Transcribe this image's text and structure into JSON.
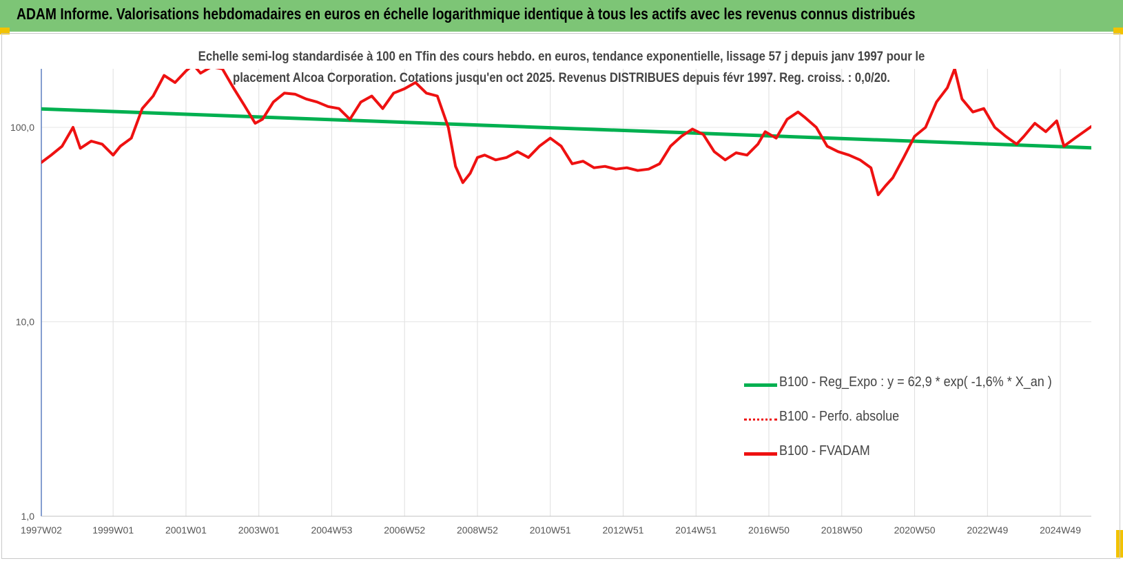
{
  "header": {
    "title": "ADAM Informe. Valorisations hebdomadaires en euros en échelle logarithmique identique à tous les actifs avec les revenus connus distribués"
  },
  "chart_data": {
    "type": "line",
    "title_lines": [
      "Echelle semi-log standardisée à 100 en Tfin des cours hebdo. en euros, tendance exponentielle, lissage 57 j depuis janv 1997 pour le",
      "placement Alcoa Corporation. Cotations jusqu'en oct 2025. Revenus DISTRIBUES depuis févr 1997. Reg. croiss. : 0,0/20."
    ],
    "y_scale": "log",
    "ylim": [
      1,
      200
    ],
    "yticks": [
      {
        "value": 1,
        "label": "1,0"
      },
      {
        "value": 10,
        "label": "10,0"
      },
      {
        "value": 100,
        "label": "100,0"
      }
    ],
    "xlim": [
      1997.03,
      2025.85
    ],
    "xticks": [
      {
        "value": 1997.03,
        "label": "1997W02"
      },
      {
        "value": 1999.0,
        "label": "1999W01"
      },
      {
        "value": 2001.0,
        "label": "2001W01"
      },
      {
        "value": 2003.0,
        "label": "2003W01"
      },
      {
        "value": 2005.0,
        "label": "2004W53"
      },
      {
        "value": 2007.0,
        "label": "2006W52"
      },
      {
        "value": 2009.0,
        "label": "2008W52"
      },
      {
        "value": 2011.0,
        "label": "2010W51"
      },
      {
        "value": 2013.0,
        "label": "2012W51"
      },
      {
        "value": 2015.0,
        "label": "2014W51"
      },
      {
        "value": 2017.0,
        "label": "2016W50"
      },
      {
        "value": 2019.0,
        "label": "2018W50"
      },
      {
        "value": 2021.0,
        "label": "2020W50"
      },
      {
        "value": 2023.0,
        "label": "2022W49"
      },
      {
        "value": 2025.0,
        "label": "2024W49"
      }
    ],
    "grid": "vertical",
    "legend_position": "lower-right",
    "colors": {
      "trend": "#00b050",
      "fvadam": "#ee1111",
      "perfo": "#ee1111"
    },
    "series": [
      {
        "name": "B100 - Reg_Expo : y = 62,9 * exp( -1,6% *  X_an )",
        "style": "solid-green",
        "x": [
          1997.03,
          2025.85
        ],
        "y": [
          124.5,
          78.5
        ]
      },
      {
        "name": "B100 - Perfo. absolue",
        "style": "dotted-red",
        "x": [],
        "y": []
      },
      {
        "name": "B100 - FVADAM",
        "style": "solid-red",
        "x": [
          1997.03,
          1997.3,
          1997.6,
          1997.9,
          1998.1,
          1998.4,
          1998.7,
          1999.0,
          1999.2,
          1999.5,
          1999.8,
          2000.1,
          2000.4,
          2000.7,
          2001.0,
          2001.2,
          2001.4,
          2001.7,
          2002.0,
          2002.3,
          2002.6,
          2002.9,
          2003.1,
          2003.4,
          2003.7,
          2004.0,
          2004.3,
          2004.6,
          2004.9,
          2005.2,
          2005.5,
          2005.8,
          2006.1,
          2006.4,
          2006.7,
          2007.0,
          2007.3,
          2007.6,
          2007.9,
          2008.2,
          2008.4,
          2008.6,
          2008.8,
          2009.0,
          2009.2,
          2009.5,
          2009.8,
          2010.1,
          2010.4,
          2010.7,
          2011.0,
          2011.3,
          2011.6,
          2011.9,
          2012.2,
          2012.5,
          2012.8,
          2013.1,
          2013.4,
          2013.7,
          2014.0,
          2014.3,
          2014.6,
          2014.9,
          2015.2,
          2015.5,
          2015.8,
          2016.1,
          2016.4,
          2016.7,
          2016.9,
          2017.2,
          2017.5,
          2017.8,
          2018.0,
          2018.3,
          2018.6,
          2018.9,
          2019.2,
          2019.5,
          2019.8,
          2020.0,
          2020.2,
          2020.4,
          2020.7,
          2021.0,
          2021.3,
          2021.6,
          2021.9,
          2022.1,
          2022.3,
          2022.6,
          2022.9,
          2023.2,
          2023.5,
          2023.8,
          2024.0,
          2024.3,
          2024.6,
          2024.9,
          2025.1,
          2025.4,
          2025.85
        ],
        "y": [
          66,
          72,
          80,
          100,
          78,
          85,
          82,
          72,
          80,
          88,
          125,
          145,
          185,
          170,
          195,
          210,
          190,
          205,
          200,
          160,
          130,
          105,
          110,
          135,
          150,
          148,
          140,
          135,
          128,
          125,
          110,
          135,
          145,
          125,
          150,
          158,
          170,
          150,
          145,
          100,
          63,
          52,
          58,
          70,
          72,
          68,
          70,
          75,
          70,
          80,
          88,
          80,
          65,
          67,
          62,
          63,
          61,
          62,
          60,
          61,
          65,
          80,
          90,
          98,
          92,
          75,
          68,
          74,
          72,
          82,
          95,
          88,
          110,
          120,
          112,
          100,
          80,
          75,
          72,
          68,
          62,
          45,
          50,
          55,
          70,
          90,
          100,
          135,
          160,
          200,
          140,
          120,
          125,
          100,
          90,
          82,
          90,
          105,
          95,
          108,
          80,
          88,
          101
        ]
      }
    ]
  },
  "legend": [
    {
      "label": "B100 - Reg_Expo : y = 62,9 * exp( -1,6% *  X_an )"
    },
    {
      "label": "B100 - Perfo. absolue"
    },
    {
      "label": "B100 - FVADAM"
    }
  ]
}
